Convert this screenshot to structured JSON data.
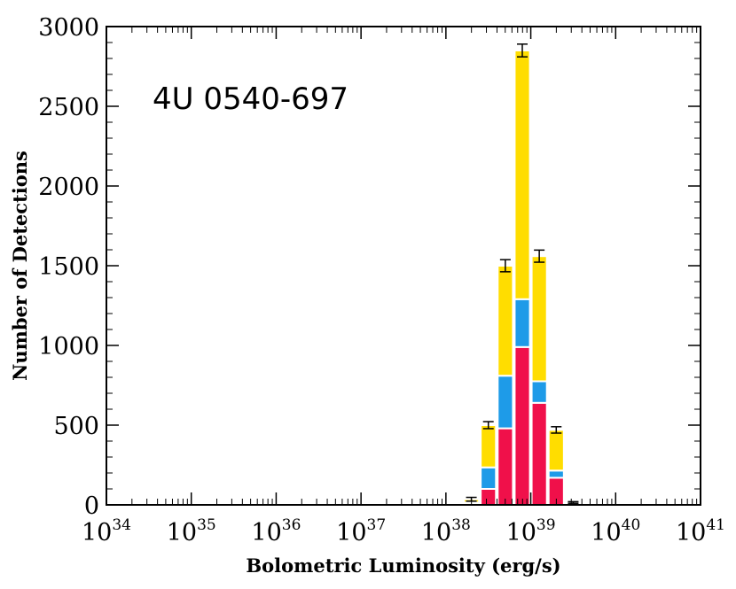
{
  "chart_data": {
    "type": "bar",
    "stacked": true,
    "annotation": "4U 0540-697",
    "xlabel": "Bolometric Luminosity (erg/s)",
    "ylabel": "Number of Detections",
    "x_scale": "log",
    "xlim": [
      1e+34,
      1e+41
    ],
    "ylim": [
      0,
      3000
    ],
    "x_ticks": [
      {
        "base": "10",
        "exp": "34"
      },
      {
        "base": "10",
        "exp": "35"
      },
      {
        "base": "10",
        "exp": "36"
      },
      {
        "base": "10",
        "exp": "37"
      },
      {
        "base": "10",
        "exp": "38"
      },
      {
        "base": "10",
        "exp": "39"
      },
      {
        "base": "10",
        "exp": "40"
      },
      {
        "base": "10",
        "exp": "41"
      }
    ],
    "y_ticks": [
      "0",
      "500",
      "1000",
      "1500",
      "2000",
      "2500",
      "3000"
    ],
    "colors": {
      "red": "#f0104a",
      "blue": "#1e9be8",
      "yellow": "#ffdd00"
    },
    "bin_edges_log10": [
      38.2,
      38.4,
      38.6,
      38.8,
      39.0,
      39.2,
      39.4,
      39.6
    ],
    "series": [
      {
        "values": [
          5,
          100,
          480,
          990,
          640,
          170,
          3
        ]
      },
      {
        "values": [
          10,
          135,
          330,
          300,
          135,
          45,
          3
        ]
      },
      {
        "values": [
          20,
          265,
          690,
          1560,
          785,
          255,
          9
        ]
      }
    ],
    "errors": [
      12,
      22,
      38,
      40,
      38,
      20,
      5
    ],
    "grid": false
  }
}
